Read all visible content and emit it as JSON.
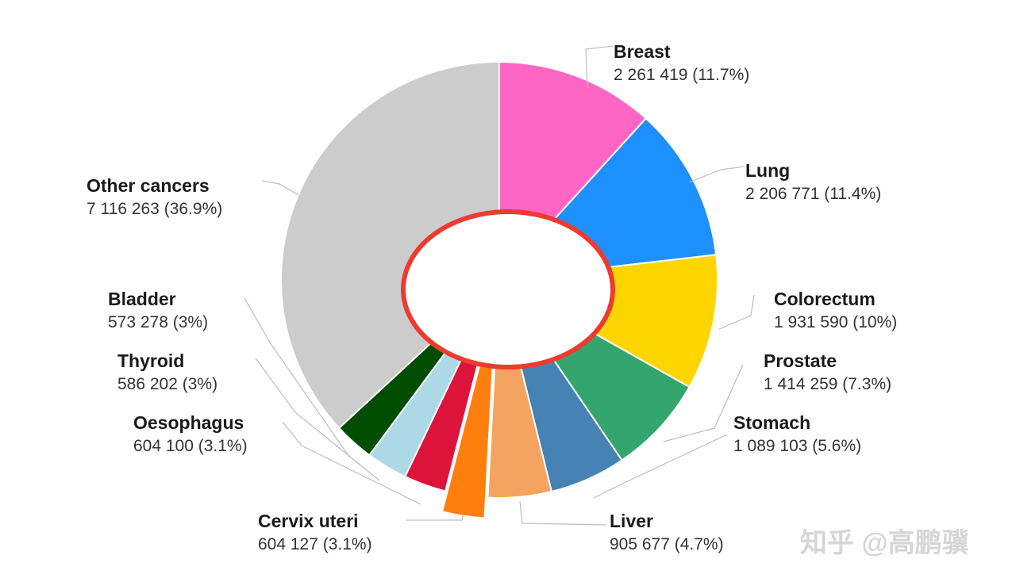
{
  "chart_data": {
    "type": "pie",
    "slices": [
      {
        "name": "Breast",
        "value": 2261419,
        "value_label": "2 261 419",
        "pct_label": "(11.7%)",
        "color": "#ff66c4"
      },
      {
        "name": "Lung",
        "value": 2206771,
        "value_label": "2 206 771",
        "pct_label": "(11.4%)",
        "color": "#1e90ff"
      },
      {
        "name": "Colorectum",
        "value": 1931590,
        "value_label": "1 931 590",
        "pct_label": "(10%)",
        "color": "#ffd500"
      },
      {
        "name": "Prostate",
        "value": 1414259,
        "value_label": "1 414 259",
        "pct_label": "(7.3%)",
        "color": "#34a56f"
      },
      {
        "name": "Stomach",
        "value": 1089103,
        "value_label": "1 089 103",
        "pct_label": "(5.6%)",
        "color": "#4682b4"
      },
      {
        "name": "Liver",
        "value": 905677,
        "value_label": "905 677",
        "pct_label": "(4.7%)",
        "color": "#f4a460"
      },
      {
        "name": "Cervix uteri",
        "value": 604127,
        "value_label": "604 127",
        "pct_label": "(3.1%)",
        "color": "#ff7f0e",
        "exploded": true
      },
      {
        "name": "Oesophagus",
        "value": 604100,
        "value_label": "604 100",
        "pct_label": "(3.1%)",
        "color": "#dc143c"
      },
      {
        "name": "Thyroid",
        "value": 586202,
        "value_label": "586 202",
        "pct_label": "(3%)",
        "color": "#add8e6"
      },
      {
        "name": "Bladder",
        "value": 573278,
        "value_label": "573 278",
        "pct_label": "(3%)",
        "color": "#004d00"
      },
      {
        "name": "Other cancers",
        "value": 7116263,
        "value_label": "7 116 263",
        "pct_label": "(36.9%)",
        "color": "#cccccc"
      }
    ],
    "start_angle_deg": 0,
    "direction": "clockwise",
    "center_highlight": {
      "shape": "ellipse",
      "fill": "#ffffff",
      "stroke": "#ee3b2f"
    }
  },
  "watermark": "知乎 @高鹏骥"
}
